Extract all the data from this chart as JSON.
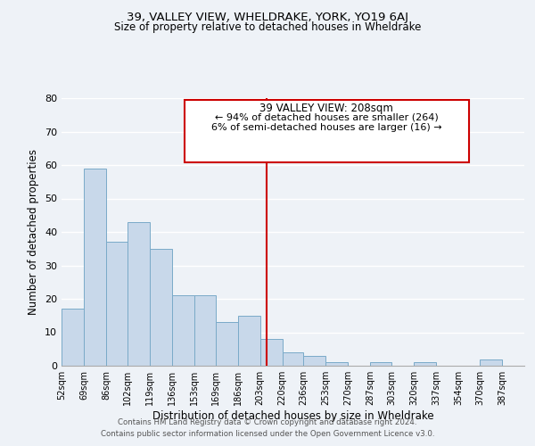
{
  "title": "39, VALLEY VIEW, WHELDRAKE, YORK, YO19 6AJ",
  "subtitle": "Size of property relative to detached houses in Wheldrake",
  "xlabel": "Distribution of detached houses by size in Wheldrake",
  "ylabel": "Number of detached properties",
  "bin_labels": [
    "52sqm",
    "69sqm",
    "86sqm",
    "102sqm",
    "119sqm",
    "136sqm",
    "153sqm",
    "169sqm",
    "186sqm",
    "203sqm",
    "220sqm",
    "236sqm",
    "253sqm",
    "270sqm",
    "287sqm",
    "303sqm",
    "320sqm",
    "337sqm",
    "354sqm",
    "370sqm",
    "387sqm"
  ],
  "bar_values": [
    17,
    59,
    37,
    43,
    35,
    21,
    21,
    13,
    15,
    8,
    4,
    3,
    1,
    0,
    1,
    0,
    1,
    0,
    0,
    2,
    0
  ],
  "bar_color": "#c8d8ea",
  "bar_edge_color": "#7aaac8",
  "vline_x": 208,
  "vline_color": "#cc0000",
  "ylim": [
    0,
    80
  ],
  "yticks": [
    0,
    10,
    20,
    30,
    40,
    50,
    60,
    70,
    80
  ],
  "annotation_title": "39 VALLEY VIEW: 208sqm",
  "annotation_line1": "← 94% of detached houses are smaller (264)",
  "annotation_line2": "6% of semi-detached houses are larger (16) →",
  "annotation_box_color": "#ffffff",
  "annotation_box_edge": "#cc0000",
  "footer_line1": "Contains HM Land Registry data © Crown copyright and database right 2024.",
  "footer_line2": "Contains public sector information licensed under the Open Government Licence v3.0.",
  "background_color": "#eef2f7",
  "grid_color": "#ffffff",
  "bin_edges": [
    52,
    69,
    86,
    102,
    119,
    136,
    153,
    169,
    186,
    203,
    220,
    236,
    253,
    270,
    287,
    303,
    320,
    337,
    354,
    370,
    387,
    404
  ]
}
